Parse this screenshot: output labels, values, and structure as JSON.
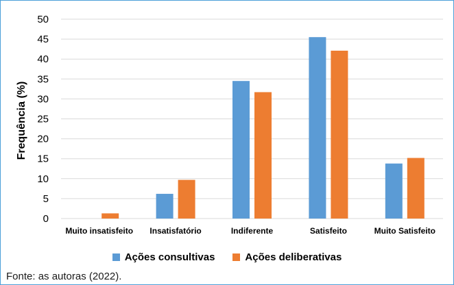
{
  "colors": {
    "series1": "#5b9bd5",
    "series2": "#ed7d31",
    "grid": "#d9d9d9",
    "border": "#4a9fd8"
  },
  "chart_data": {
    "type": "bar",
    "categories": [
      "Muito insatisfeito",
      "Insatisfatório",
      "Indiferente",
      "Satisfeito",
      "Muito Satisfeito"
    ],
    "series": [
      {
        "name": "Ações consultivas",
        "values": [
          0,
          6.2,
          34.5,
          45.5,
          13.8
        ]
      },
      {
        "name": "Ações deliberativas",
        "values": [
          1.3,
          9.7,
          31.7,
          42.1,
          15.2
        ]
      }
    ],
    "ylabel": "Frequência (%)",
    "xlabel": "",
    "ylim": [
      0,
      50
    ],
    "yticks": [
      0,
      5,
      10,
      15,
      20,
      25,
      30,
      35,
      40,
      45,
      50
    ],
    "grid": true,
    "legend": "bottom"
  },
  "caption": "Fonte: as autoras (2022)."
}
